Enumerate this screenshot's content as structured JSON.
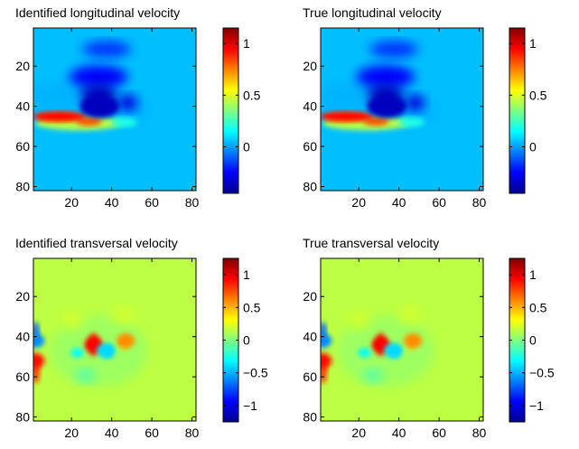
{
  "chart_data": [
    {
      "type": "heatmap",
      "title": "Identified longitudinal velocity",
      "xlim": [
        1,
        82
      ],
      "ylim": [
        1,
        82
      ],
      "y_reversed": true,
      "xticks": [
        20,
        40,
        60,
        80
      ],
      "yticks": [
        20,
        40,
        60,
        80
      ],
      "colorbar": {
        "min": -0.45,
        "max": 1.15,
        "ticks": [
          0,
          0.5,
          1
        ],
        "ticklabels": [
          "0",
          "0.5",
          "1"
        ]
      },
      "background_value": 0.05,
      "features": [
        {
          "x": 14,
          "y": 45,
          "value": 0.95,
          "note": "high-velocity band"
        },
        {
          "x": 34,
          "y": 40,
          "value": -0.35,
          "note": "low-velocity lobe"
        }
      ]
    },
    {
      "type": "heatmap",
      "title": "True longitudinal velocity",
      "xlim": [
        1,
        82
      ],
      "ylim": [
        1,
        82
      ],
      "y_reversed": true,
      "xticks": [
        20,
        40,
        60,
        80
      ],
      "yticks": [
        20,
        40,
        60,
        80
      ],
      "colorbar": {
        "min": -0.45,
        "max": 1.15,
        "ticks": [
          0,
          0.5,
          1
        ],
        "ticklabels": [
          "0",
          "0.5",
          "1"
        ]
      },
      "background_value": 0.05,
      "features": [
        {
          "x": 14,
          "y": 45,
          "value": 0.95
        },
        {
          "x": 34,
          "y": 40,
          "value": -0.35
        }
      ]
    },
    {
      "type": "heatmap",
      "title": "Identified transversal velocity",
      "xlim": [
        1,
        82
      ],
      "ylim": [
        1,
        82
      ],
      "y_reversed": true,
      "xticks": [
        20,
        40,
        60,
        80
      ],
      "yticks": [
        20,
        40,
        60,
        80
      ],
      "colorbar": {
        "min": -1.25,
        "max": 1.25,
        "ticks": [
          1,
          0.5,
          0,
          -0.5,
          -1
        ],
        "ticklabels": [
          "1",
          "0.5",
          "0",
          "−0.5",
          "−1"
        ]
      },
      "background_value": 0.15,
      "features": [
        {
          "x": 31,
          "y": 44,
          "value": 0.95
        },
        {
          "x": 47,
          "y": 42,
          "value": 0.6
        },
        {
          "x": 37,
          "y": 47,
          "value": -0.4
        },
        {
          "x": 2,
          "y": 52,
          "value": 0.9
        },
        {
          "x": 2,
          "y": 42,
          "value": -0.6
        }
      ]
    },
    {
      "type": "heatmap",
      "title": "True transversal velocity",
      "xlim": [
        1,
        82
      ],
      "ylim": [
        1,
        82
      ],
      "y_reversed": true,
      "xticks": [
        20,
        40,
        60,
        80
      ],
      "yticks": [
        20,
        40,
        60,
        80
      ],
      "colorbar": {
        "min": -1.25,
        "max": 1.25,
        "ticks": [
          1,
          0.5,
          0,
          -0.5,
          -1
        ],
        "ticklabels": [
          "1",
          "0.5",
          "0",
          "−0.5",
          "−1"
        ]
      },
      "background_value": 0.15,
      "features": [
        {
          "x": 31,
          "y": 44,
          "value": 0.95
        },
        {
          "x": 47,
          "y": 42,
          "value": 0.6
        },
        {
          "x": 37,
          "y": 47,
          "value": -0.4
        },
        {
          "x": 2,
          "y": 52,
          "value": 0.9
        },
        {
          "x": 2,
          "y": 42,
          "value": -0.6
        }
      ]
    }
  ]
}
